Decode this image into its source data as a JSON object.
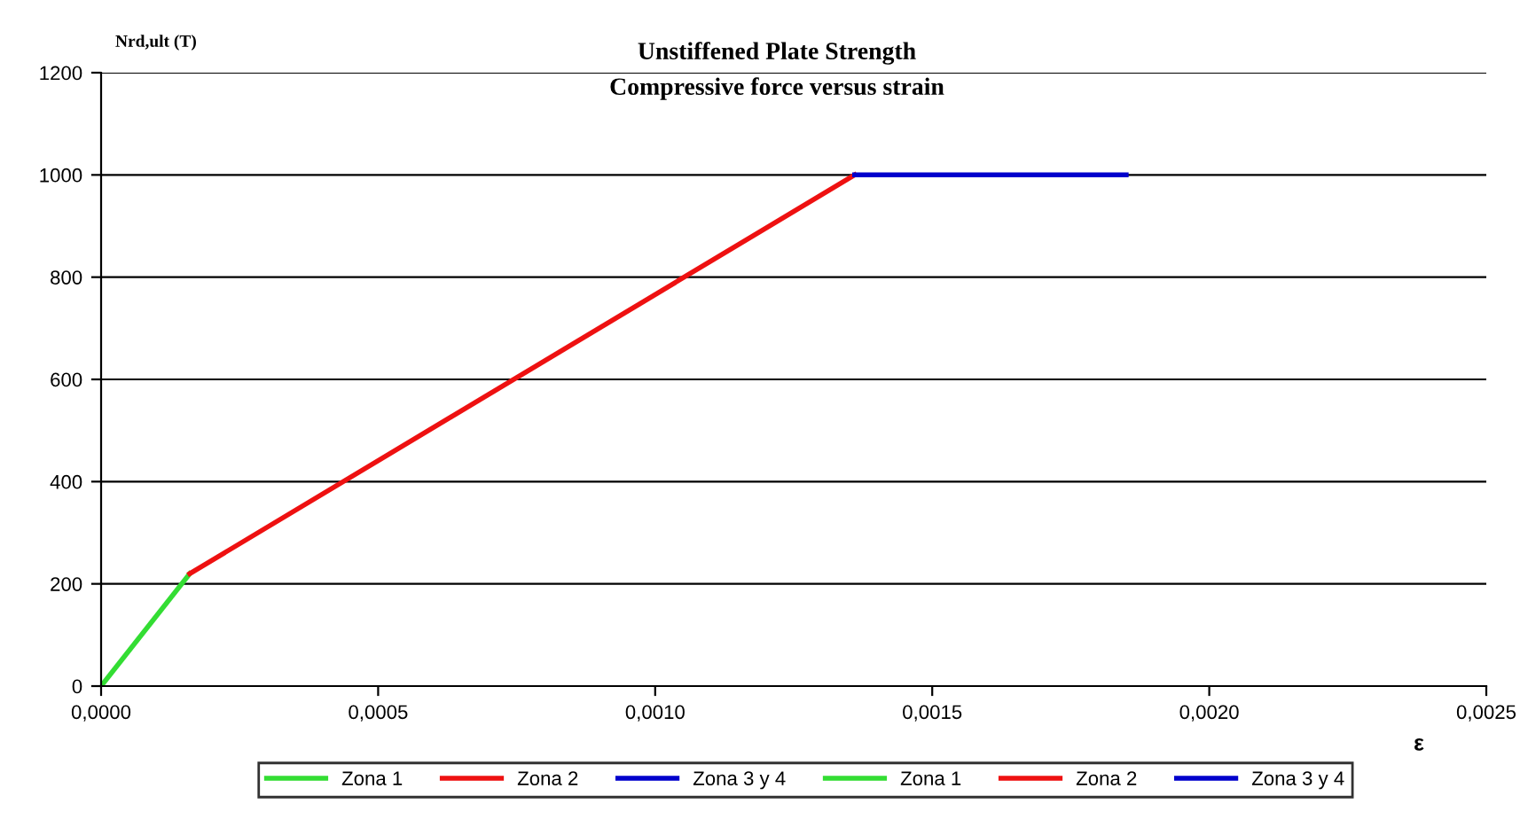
{
  "chart_data": {
    "type": "line",
    "title": "Unstiffened Plate Strength",
    "subtitle": "Compressive force versus strain",
    "xlabel": "ε",
    "ylabel": "Nrd,ult (T)",
    "series": [
      {
        "name": "Zona 1",
        "color": "#33dd33",
        "x": [
          0,
          0.00016
        ],
        "values": [
          0,
          220
        ]
      },
      {
        "name": "Zona 2",
        "color": "#ee1111",
        "x": [
          0.00016,
          0.00136
        ],
        "values": [
          220,
          1000
        ]
      },
      {
        "name": "Zona 3 y 4",
        "color": "#0000cc",
        "x": [
          0.00136,
          0.00185
        ],
        "values": [
          1000,
          1000
        ]
      },
      {
        "name": "Zona 1",
        "color": "#33dd33"
      },
      {
        "name": "Zona 2",
        "color": "#ee1111"
      },
      {
        "name": "Zona 3 y 4",
        "color": "#0000cc"
      }
    ],
    "xlim": [
      0,
      0.0025
    ],
    "xticks": [
      {
        "value": 0,
        "label": "0,0000"
      },
      {
        "value": 0.0005,
        "label": "0,0005"
      },
      {
        "value": 0.001,
        "label": "0,0010"
      },
      {
        "value": 0.0015,
        "label": "0,0015"
      },
      {
        "value": 0.002,
        "label": "0,0020"
      },
      {
        "value": 0.0025,
        "label": "0,0025"
      }
    ],
    "ylim": [
      0,
      1200
    ],
    "yticks": [
      0,
      200,
      400,
      600,
      800,
      1000,
      1200
    ],
    "grid": "y",
    "legend": "bottom",
    "marker": "none",
    "line_style": "solid"
  }
}
